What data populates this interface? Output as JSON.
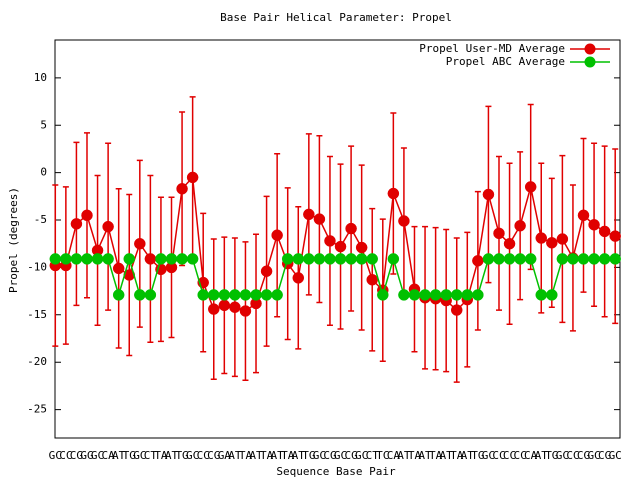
{
  "chart_data": {
    "type": "line",
    "title": "Base Pair Helical Parameter: Propel",
    "x_label": "Sequence Base Pair",
    "y_label": "Propel (degrees)",
    "categories": [
      "GC",
      "CC",
      "CG",
      "GG",
      "GC",
      "CA",
      "AT",
      "TG",
      "GC",
      "CT",
      "TA",
      "AT",
      "TG",
      "GC",
      "CC",
      "CG",
      "GA",
      "AT",
      "TA",
      "AT",
      "TA",
      "AT",
      "TA",
      "AT",
      "TG",
      "GC",
      "CG",
      "GC",
      "CG",
      "GC",
      "CT",
      "TC",
      "CA",
      "AT",
      "TA",
      "AT",
      "TA",
      "AT",
      "TA",
      "AT",
      "TG",
      "GC",
      "CC",
      "CC",
      "CC",
      "CA",
      "AT",
      "TG",
      "GC",
      "CC",
      "CG",
      "GC",
      "CG",
      "GC"
    ],
    "series": [
      {
        "name": "Propel User-MD Average",
        "color": "#e00000",
        "values": [
          -9.8,
          -9.8,
          -5.4,
          -4.5,
          -8.2,
          -5.7,
          -10.1,
          -10.8,
          -7.5,
          -9.1,
          -10.2,
          -10,
          -1.7,
          -0.5,
          -11.6,
          -14.4,
          -14,
          -14.2,
          -14.6,
          -13.8,
          -10.4,
          -6.6,
          -9.6,
          -11.1,
          -4.4,
          -4.9,
          -7.2,
          -7.8,
          -5.9,
          -7.9,
          -11.3,
          -12.4,
          -2.2,
          -5.1,
          -12.3,
          -13.2,
          -13.3,
          -13.5,
          -14.5,
          -13.4,
          -9.3,
          -2.3,
          -6.4,
          -7.5,
          -5.6,
          -1.5,
          -6.9,
          -7.4,
          -7,
          -9,
          -4.5,
          -5.5,
          -6.2,
          -6.7
        ],
        "errors": [
          8.5,
          8.3,
          8.6,
          8.7,
          7.9,
          8.8,
          8.4,
          8.5,
          8.8,
          8.8,
          7.6,
          7.4,
          8.1,
          8.5,
          7.3,
          7.4,
          7.2,
          7.3,
          7.3,
          7.3,
          7.9,
          8.6,
          8,
          7.5,
          8.5,
          8.8,
          8.9,
          8.7,
          8.7,
          8.7,
          7.5,
          7.5,
          8.5,
          7.7,
          6.6,
          7.5,
          7.5,
          7.5,
          7.6,
          7.1,
          7.3,
          9.3,
          8.1,
          8.5,
          7.8,
          8.7,
          7.9,
          6.8,
          8.8,
          7.7,
          8.1,
          8.6,
          9,
          9.2
        ]
      },
      {
        "name": "Propel ABC Average",
        "color": "#00c000",
        "values": [
          -9.1,
          -9.1,
          -9.1,
          -9.1,
          -9.1,
          -9.1,
          -12.9,
          -9.1,
          -12.9,
          -12.9,
          -9.1,
          -9.1,
          -9.1,
          -9.1,
          -12.9,
          -12.9,
          -12.9,
          -12.9,
          -12.9,
          -12.9,
          -12.9,
          -12.9,
          -9.1,
          -9.1,
          -9.1,
          -9.1,
          -9.1,
          -9.1,
          -9.1,
          -9.1,
          -9.1,
          -12.9,
          -9.1,
          -12.9,
          -12.9,
          -12.9,
          -12.9,
          -12.9,
          -12.9,
          -12.9,
          -12.9,
          -9.1,
          -9.1,
          -9.1,
          -9.1,
          -9.1,
          -12.9,
          -12.9,
          -9.1,
          -9.1,
          -9.1,
          -9.1,
          -9.1,
          -9.1
        ]
      }
    ],
    "ylim": [
      -28,
      14
    ],
    "yticks": [
      -25,
      -20,
      -15,
      -10,
      -5,
      0,
      5,
      10
    ],
    "legend": "upper right"
  }
}
